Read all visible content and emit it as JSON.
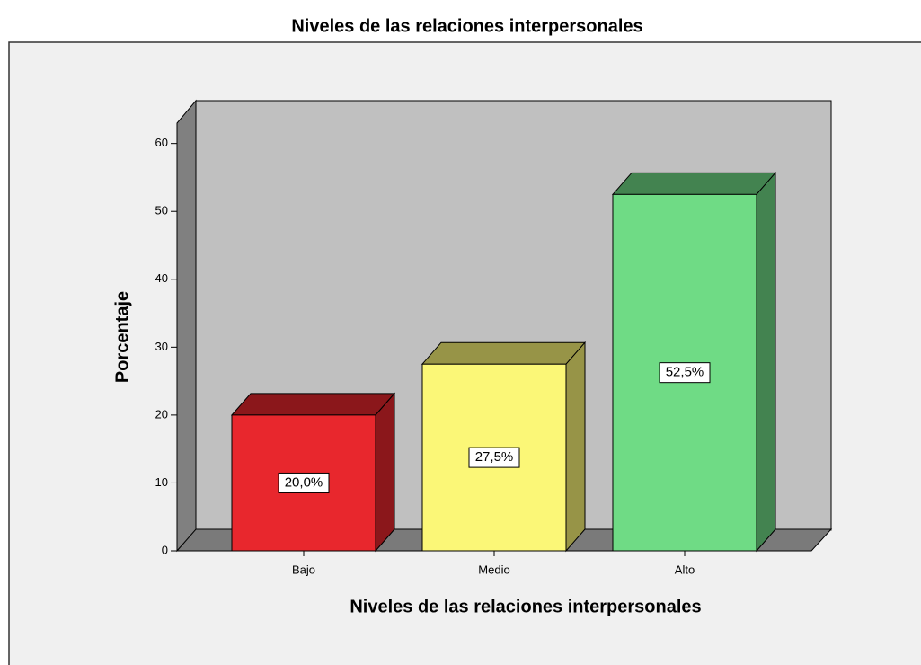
{
  "chart_data": {
    "type": "bar3d",
    "title": "Niveles de las relaciones interpersonales",
    "x_label": "Niveles de las relaciones interpersonales",
    "y_label": "Porcentaje",
    "categories": [
      "Bajo",
      "Medio",
      "Alto"
    ],
    "values": [
      20,
      27.5,
      52.5
    ],
    "value_labels": [
      "20,0%",
      "27,5%",
      "52,5%"
    ],
    "colors": [
      "#e8272d",
      "#fbf777",
      "#6fdb85"
    ],
    "ylim": [
      0,
      63
    ],
    "yticks": [
      0,
      10,
      20,
      30,
      40,
      50,
      60
    ]
  }
}
